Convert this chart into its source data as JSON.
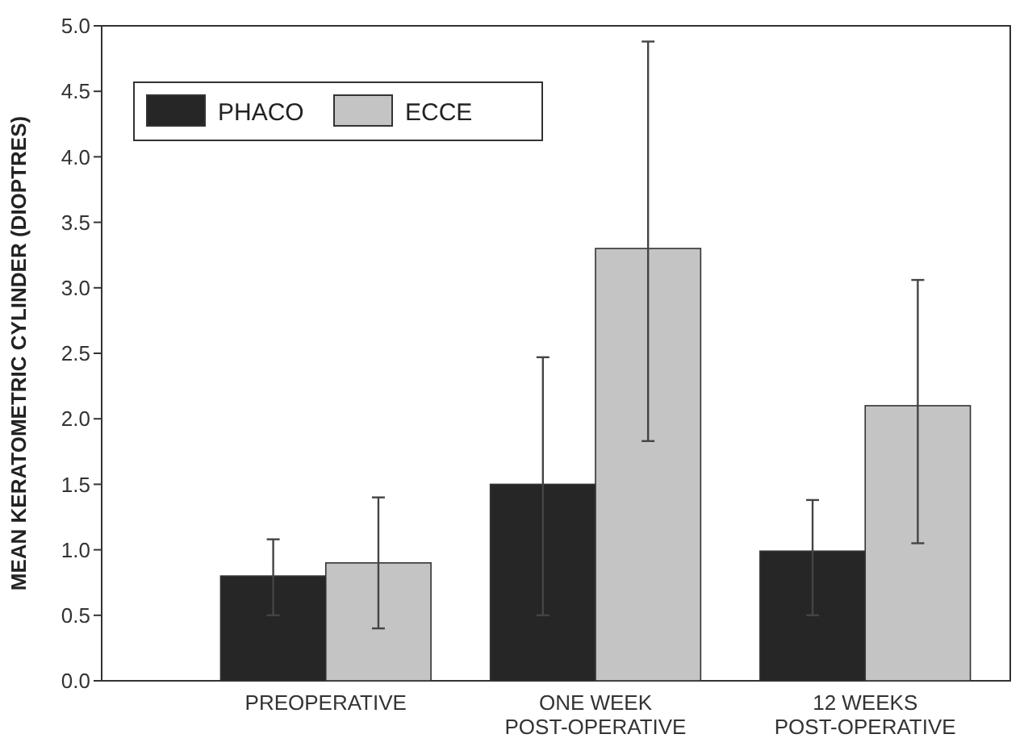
{
  "chart_data": {
    "type": "bar",
    "ylabel": "MEAN KERATOMETRIC CYLINDER (DIOPTRES)",
    "categories": [
      "PREOPERATIVE",
      "ONE WEEK\nPOST-OPERATIVE",
      "12 WEEKS\nPOST-OPERATIVE"
    ],
    "series": [
      {
        "name": "PHACO",
        "color": "#262626",
        "values": [
          0.8,
          1.5,
          0.99
        ],
        "errors": [
          [
            0.5,
            1.08
          ],
          [
            0.5,
            2.47
          ],
          [
            0.5,
            1.38
          ]
        ]
      },
      {
        "name": "ECCE",
        "color": "#c4c4c4",
        "values": [
          0.9,
          3.3,
          2.1
        ],
        "errors": [
          [
            0.4,
            1.4
          ],
          [
            1.83,
            4.88
          ],
          [
            1.05,
            3.06
          ]
        ]
      }
    ],
    "ylim": [
      0,
      5
    ],
    "yticks": [
      {
        "value": 0,
        "label": "0.0"
      },
      0.5,
      {
        "value": 1,
        "label": "1.0"
      },
      1.5,
      {
        "value": 2,
        "label": "2.0"
      },
      2.5,
      {
        "value": 3,
        "label": "3.0"
      },
      3.5,
      {
        "value": 4,
        "label": "4.0"
      },
      4.5,
      {
        "value": 5,
        "label": "5.0"
      }
    ],
    "grid": false,
    "legend": "top left"
  }
}
